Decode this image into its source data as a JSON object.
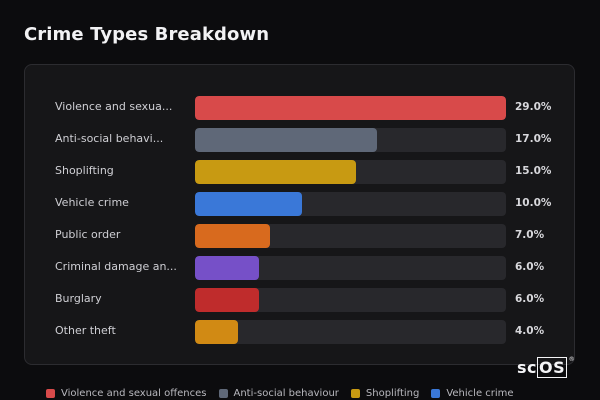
{
  "page": {
    "title": "Crime Types Breakdown",
    "logo": {
      "prefix": "sc",
      "boxed": "OS",
      "mark": "®"
    }
  },
  "colors": {
    "background": "#0c0c0e",
    "card": "#161618",
    "track": "#28282c"
  },
  "chart_data": {
    "type": "bar",
    "orientation": "horizontal",
    "title": "Crime Types Breakdown",
    "xlim": [
      0,
      29
    ],
    "categories": [
      "Violence and sexua...",
      "Anti-social behavi...",
      "Shoplifting",
      "Vehicle crime",
      "Public order",
      "Criminal damage an...",
      "Burglary",
      "Other theft"
    ],
    "values": [
      29.0,
      17.0,
      15.0,
      10.0,
      7.0,
      6.0,
      6.0,
      4.0
    ],
    "value_labels": [
      "29.0%",
      "17.0%",
      "15.0%",
      "10.0%",
      "7.0%",
      "6.0%",
      "6.0%",
      "4.0%"
    ],
    "bar_colors": [
      "#d84a4a",
      "#5f6878",
      "#c89a12",
      "#3a78d8",
      "#d86a1e",
      "#7650c8",
      "#bf2c2c",
      "#d18a14"
    ],
    "grid": false
  },
  "legend": {
    "placement": "bottom",
    "items": [
      {
        "label": "Violence and sexual offences",
        "color": "#d84a4a"
      },
      {
        "label": "Anti-social behaviour",
        "color": "#5f6878"
      },
      {
        "label": "Shoplifting",
        "color": "#c89a12"
      },
      {
        "label": "Vehicle crime",
        "color": "#3a78d8"
      }
    ]
  }
}
